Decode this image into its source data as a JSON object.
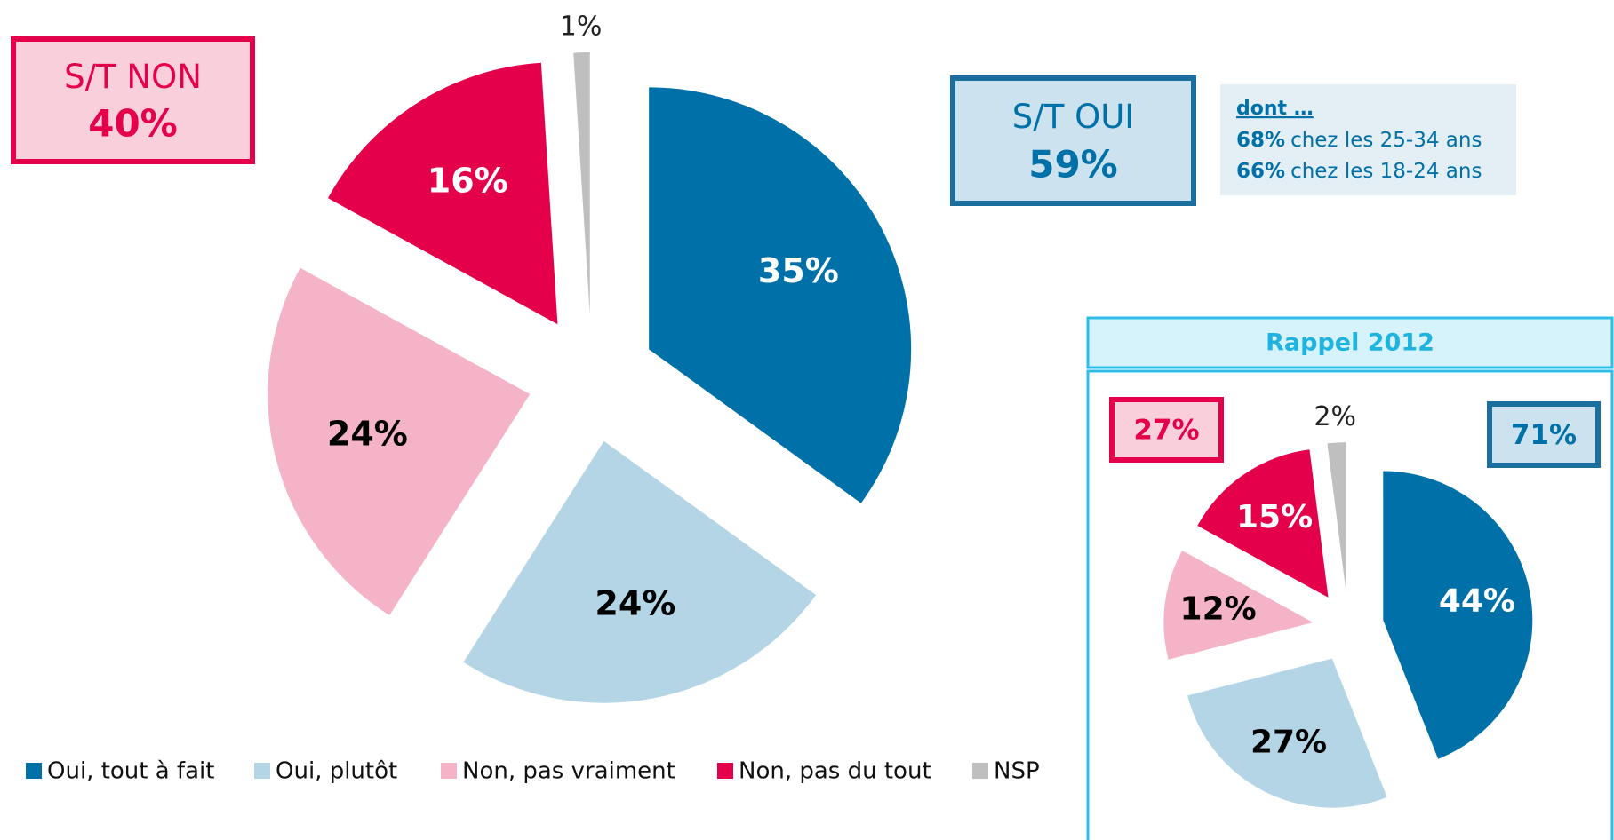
{
  "chart_data": [
    {
      "type": "pie",
      "categories": [
        "Oui, tout à fait",
        "Oui, plutôt",
        "Non, pas vraiment",
        "Non, pas du tout",
        "NSP"
      ],
      "values": [
        35,
        24,
        24,
        16,
        1
      ],
      "value_labels": [
        "35%",
        "24%",
        "24%",
        "16%",
        "1%"
      ],
      "colors": [
        "#0070a8",
        "#b4d5e6",
        "#f5b3c7",
        "#e4004b",
        "#bfbfbf"
      ],
      "legend": true,
      "boxes": [
        {
          "label": "S/T NON",
          "value": 40,
          "value_label": "40%",
          "color": "#e4004b",
          "fill": "#f9cfdc"
        },
        {
          "label": "S/T OUI",
          "value": 59,
          "value_label": "59%",
          "color": "#1a6f9e",
          "fill": "#cce3ef"
        }
      ],
      "note": {
        "title": "dont …",
        "lines": [
          {
            "value": 68,
            "value_label": "68%",
            "text": "chez les 25-34 ans"
          },
          {
            "value": 66,
            "value_label": "66%",
            "text": "chez les 18-24 ans"
          }
        ]
      }
    },
    {
      "type": "pie",
      "title": "Rappel 2012",
      "values": [
        44,
        27,
        12,
        15,
        2
      ],
      "value_labels": [
        "44%",
        "27%",
        "12%",
        "15%",
        "2%"
      ],
      "colors": [
        "#0070a8",
        "#b4d5e6",
        "#f5b3c7",
        "#e4004b",
        "#bfbfbf"
      ],
      "legend": false,
      "boxes": [
        {
          "value": 27,
          "value_label": "27%",
          "color": "#e4004b",
          "fill": "#f9cfdc"
        },
        {
          "value": 71,
          "value_label": "71%",
          "color": "#1a6f9e",
          "fill": "#cce3ef"
        }
      ]
    }
  ]
}
